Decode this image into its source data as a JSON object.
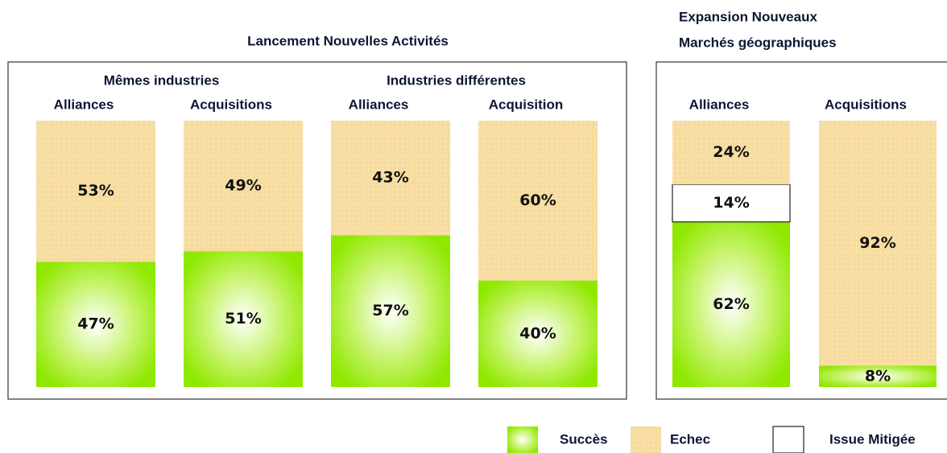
{
  "chart_data": {
    "type": "bar",
    "stacked": true,
    "ylim": [
      0,
      100
    ],
    "legend": [
      {
        "name": "Succès",
        "color": "#8fe800"
      },
      {
        "name": "Echec",
        "color": "#f7dca0"
      },
      {
        "name": "Issue Mitigée",
        "color": "#ffffff"
      }
    ],
    "panels": [
      {
        "title": [
          "Lancement Nouvelles Activités"
        ],
        "groups": [
          "Mêmes industries",
          "Industries différentes"
        ],
        "categories": [
          "Alliances",
          "Acquisitions",
          "Alliances",
          "Acquisition"
        ],
        "series": [
          {
            "values": [
              47,
              51,
              57,
              40
            ],
            "value_labels": [
              "47%",
              "51%",
              "57%",
              "40%"
            ]
          },
          {
            "values": [
              53,
              49,
              43,
              60
            ],
            "value_labels": [
              "53%",
              "49%",
              "43%",
              "60%"
            ]
          }
        ]
      },
      {
        "title": [
          "Expansion Nouveaux",
          "Marchés géographiques"
        ],
        "categories": [
          "Alliances",
          "Acquisitions"
        ],
        "series": [
          {
            "values": [
              62,
              8
            ],
            "value_labels": [
              "62%",
              "8%"
            ]
          },
          {
            "values": [
              24,
              92
            ],
            "value_labels": [
              "24%",
              "92%"
            ]
          },
          {
            "values": [
              14,
              null
            ],
            "value_labels": [
              "14%",
              null
            ]
          }
        ]
      }
    ]
  }
}
